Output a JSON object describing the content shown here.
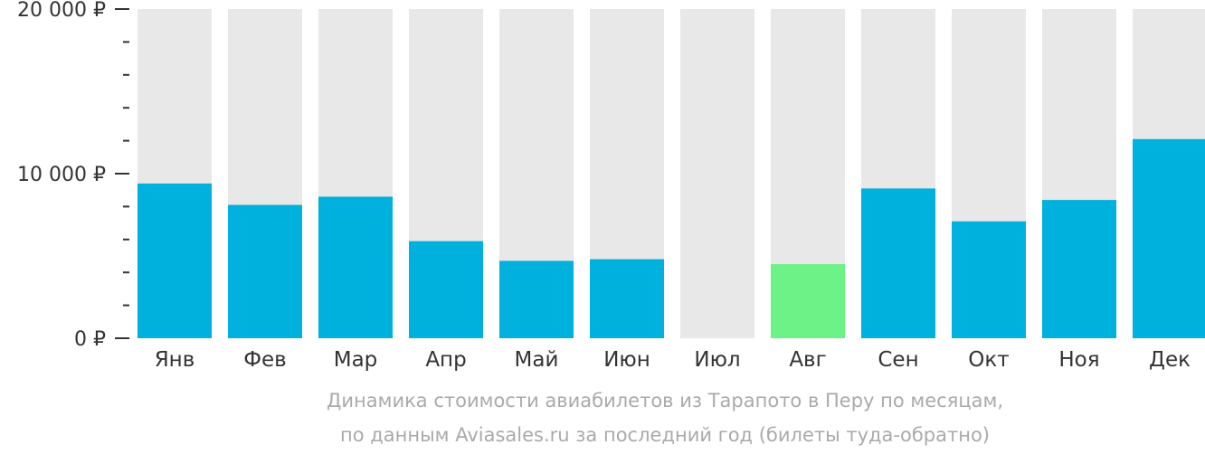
{
  "chart_data": {
    "type": "bar",
    "categories": [
      "Янв",
      "Фев",
      "Мар",
      "Апр",
      "Май",
      "Июн",
      "Июл",
      "Авг",
      "Сен",
      "Окт",
      "Ноя",
      "Дек"
    ],
    "values": [
      9400,
      8100,
      8600,
      5900,
      4700,
      4800,
      null,
      4500,
      9100,
      7100,
      8400,
      12100
    ],
    "ylim": [
      0,
      20000
    ],
    "y_ticks": [
      {
        "value": 0,
        "label": "0 ₽"
      },
      {
        "value": 10000,
        "label": "10 000 ₽"
      },
      {
        "value": 20000,
        "label": "20 000 ₽"
      }
    ],
    "minor_tick_step": 2000,
    "highlight_index": 7,
    "colors": {
      "bar": "#00b0dd",
      "highlight": "#6cf287",
      "background_bar": "#e8e8e8",
      "axis": "#333333",
      "caption": "#aaaaaa"
    }
  },
  "caption": {
    "line1": "Динамика стоимости авиабилетов из Тарапото в Перу по месяцам,",
    "line2": "по данным Aviasales.ru за последний год (билеты туда-обратно)"
  }
}
